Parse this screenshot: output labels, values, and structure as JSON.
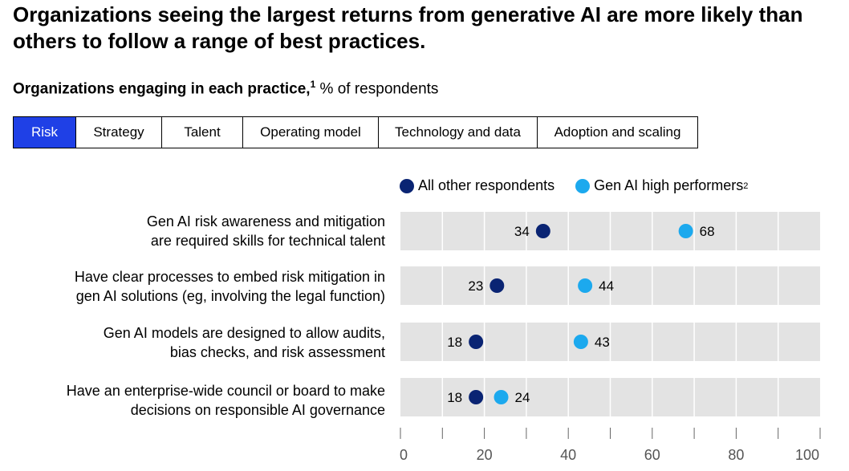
{
  "title": "Organizations seeing the largest returns from generative AI are more likely than others to follow a range of best practices.",
  "subtitle": {
    "bold": "Organizations engaging in each practice,",
    "footnote": "1",
    "rest": " % of respondents"
  },
  "tabs": [
    {
      "label": "Risk",
      "active": true
    },
    {
      "label": "Strategy",
      "active": false
    },
    {
      "label": "Talent",
      "active": false
    },
    {
      "label": "Operating model",
      "active": false
    },
    {
      "label": "Technology and data",
      "active": false
    },
    {
      "label": "Adoption and scaling",
      "active": false
    }
  ],
  "colors": {
    "accent": "#1f40e6",
    "series_other": "#0a2473",
    "series_high": "#1ca9ee",
    "band": "#e3e3e3"
  },
  "chart_data": {
    "type": "dot",
    "categories": [
      [
        "Gen AI risk awareness and mitigation",
        "are required skills for technical talent"
      ],
      [
        "Have clear processes to embed risk mitigation in",
        "gen AI solutions (eg, involving the legal function)"
      ],
      [
        "Gen AI models are designed to allow audits,",
        "bias checks, and risk assessment"
      ],
      [
        "Have an enterprise-wide council or board to make",
        "decisions on responsible AI governance"
      ]
    ],
    "series": [
      {
        "name": "All other respondents",
        "values": [
          34,
          23,
          18,
          18
        ]
      },
      {
        "name": "Gen AI high performers",
        "footnote": "2",
        "values": [
          68,
          44,
          43,
          24
        ]
      }
    ],
    "xlim": [
      0,
      100
    ],
    "xticks": [
      0,
      20,
      40,
      60,
      80,
      100
    ],
    "minor_ticks": [
      10,
      30,
      50,
      70,
      90
    ],
    "legend_position": "top"
  }
}
